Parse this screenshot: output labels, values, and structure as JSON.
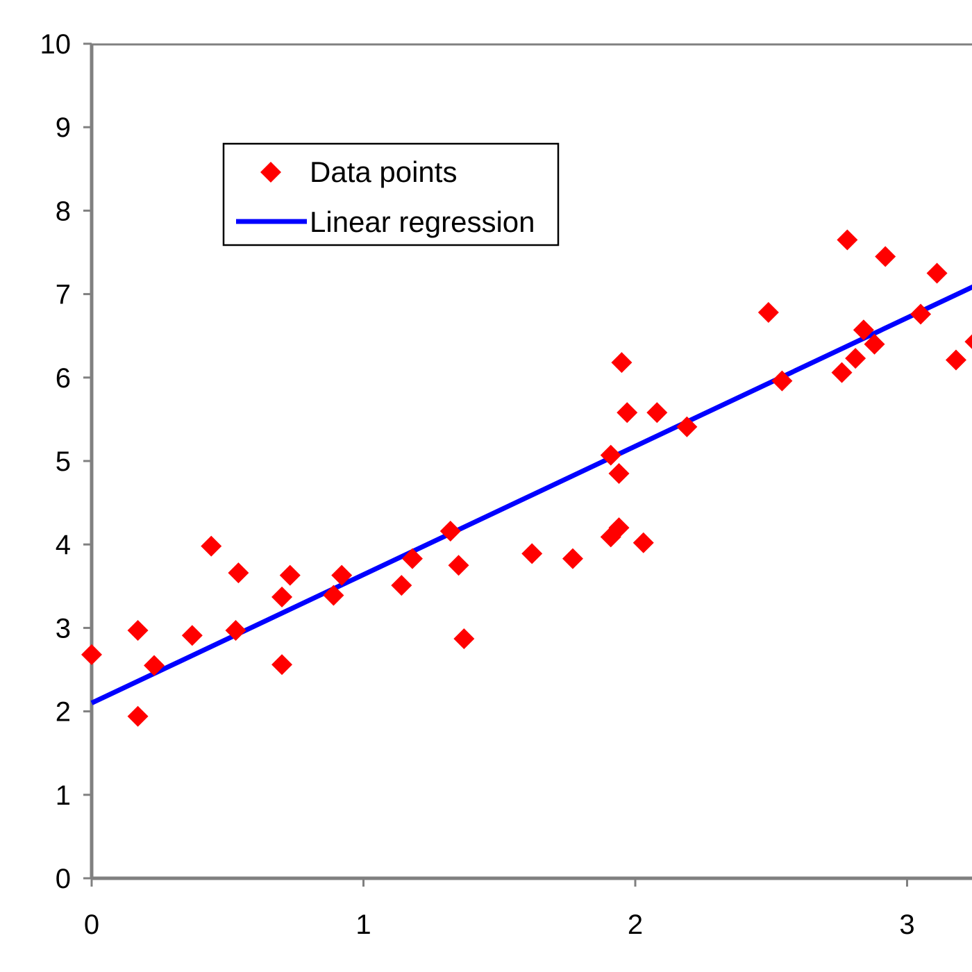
{
  "chart_data": {
    "type": "scatter",
    "title": "",
    "xlabel": "",
    "ylabel": "",
    "xlim": [
      0,
      3.25
    ],
    "ylim": [
      0,
      10
    ],
    "xticks": [
      0,
      1,
      2,
      3
    ],
    "yticks": [
      0,
      1,
      2,
      3,
      4,
      5,
      6,
      7,
      8,
      9,
      10
    ],
    "grid": false,
    "legend_position": "top-left",
    "legend": [
      {
        "label": "Data points",
        "marker": "diamond",
        "color": "#ff0000"
      },
      {
        "label": "Linear regression",
        "marker": "line",
        "color": "#0000ff"
      }
    ],
    "series": [
      {
        "name": "Data points",
        "type": "scatter",
        "color": "#ff0000",
        "marker": "diamond",
        "points": [
          [
            0.0,
            2.68
          ],
          [
            0.17,
            1.94
          ],
          [
            0.17,
            2.97
          ],
          [
            0.23,
            2.55
          ],
          [
            0.37,
            2.91
          ],
          [
            0.44,
            3.98
          ],
          [
            0.53,
            2.97
          ],
          [
            0.54,
            3.66
          ],
          [
            0.7,
            3.37
          ],
          [
            0.7,
            2.56
          ],
          [
            0.73,
            3.63
          ],
          [
            0.89,
            3.39
          ],
          [
            0.92,
            3.63
          ],
          [
            1.14,
            3.51
          ],
          [
            1.18,
            3.83
          ],
          [
            1.32,
            4.16
          ],
          [
            1.35,
            3.75
          ],
          [
            1.37,
            2.87
          ],
          [
            1.62,
            3.89
          ],
          [
            1.77,
            3.83
          ],
          [
            1.91,
            4.09
          ],
          [
            1.91,
            5.07
          ],
          [
            1.94,
            4.2
          ],
          [
            1.94,
            4.85
          ],
          [
            1.95,
            6.18
          ],
          [
            1.97,
            5.58
          ],
          [
            2.03,
            4.02
          ],
          [
            2.08,
            5.58
          ],
          [
            2.19,
            5.41
          ],
          [
            2.49,
            6.78
          ],
          [
            2.54,
            5.96
          ],
          [
            2.76,
            6.06
          ],
          [
            2.78,
            7.65
          ],
          [
            2.81,
            6.23
          ],
          [
            2.84,
            6.57
          ],
          [
            2.88,
            6.4
          ],
          [
            2.92,
            7.45
          ],
          [
            3.05,
            6.76
          ],
          [
            3.11,
            7.25
          ],
          [
            3.18,
            6.21
          ],
          [
            3.25,
            6.43
          ]
        ]
      },
      {
        "name": "Linear regression",
        "type": "line",
        "color": "#0000ff",
        "points": [
          [
            0,
            2.1
          ],
          [
            3.25,
            7.1
          ]
        ]
      }
    ]
  }
}
